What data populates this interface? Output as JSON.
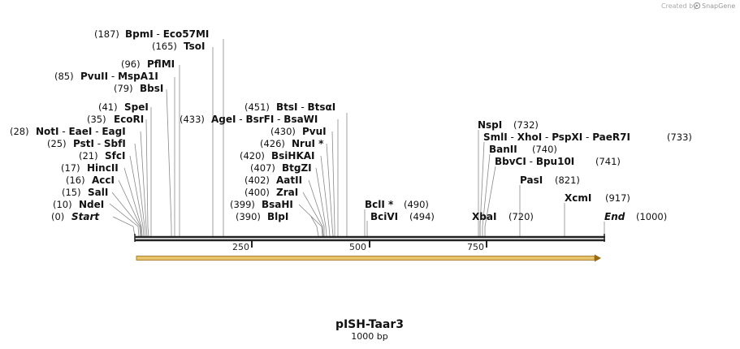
{
  "credit": {
    "prefix": "Created by",
    "brand": "SnapGene"
  },
  "map": {
    "name": "pISH-Taar3",
    "length_label": "1000 bp",
    "length": 1000,
    "ticks": [
      "250",
      "500",
      "750"
    ],
    "feature_color": "#e7c46b",
    "feature_edge": "#9a6a12"
  },
  "sites": [
    {
      "pos": "(0)",
      "name": "Start",
      "style": "end",
      "at": 0
    },
    {
      "pos": "(10)",
      "name": "NdeI",
      "at": 10
    },
    {
      "pos": "(15)",
      "name": "SalI",
      "at": 15
    },
    {
      "pos": "(16)",
      "name": "AccI",
      "at": 16
    },
    {
      "pos": "(17)",
      "name": "HincII",
      "at": 17
    },
    {
      "pos": "(21)",
      "name": "SfcI",
      "at": 21
    },
    {
      "pos": "(25)",
      "name": "PstI  -  SbfI",
      "at": 25
    },
    {
      "pos": "(28)",
      "name": "NotI  -  EaeI  -  EagI",
      "at": 28
    },
    {
      "pos": "(35)",
      "name": "EcoRI",
      "at": 35
    },
    {
      "pos": "(41)",
      "name": "SpeI",
      "at": 41
    },
    {
      "pos": "(79)",
      "name": "BbsI",
      "at": 79
    },
    {
      "pos": "(85)",
      "name": "PvuII   -  MspA1I",
      "at": 85
    },
    {
      "pos": "(96)",
      "name": "PflMI",
      "at": 96
    },
    {
      "pos": "(165)",
      "name": "TsoI",
      "at": 165
    },
    {
      "pos": "(187)",
      "name": "BpmI   -  Eco57MI",
      "at": 187
    },
    {
      "pos": "(433)",
      "name": "AgeI  -  BsrFI  -  BsaWI",
      "at": 433
    },
    {
      "pos": "(451)",
      "name": "BtsI  -  BtsαI",
      "at": 451
    },
    {
      "pos": "(430)",
      "name": "PvuI",
      "at": 430
    },
    {
      "pos": "(426)",
      "name": "NruI *",
      "at": 426
    },
    {
      "pos": "(420)",
      "name": "BsiHKAI",
      "at": 420
    },
    {
      "pos": "(407)",
      "name": "BtgZI",
      "at": 407
    },
    {
      "pos": "(402)",
      "name": "AatII",
      "at": 402
    },
    {
      "pos": "(400)",
      "name": "ZraI",
      "at": 400
    },
    {
      "pos": "(399)",
      "name": "BsaHI",
      "at": 399
    },
    {
      "pos": "(390)",
      "name": "BlpI",
      "at": 390
    },
    {
      "pos": "(490)",
      "name": "BclI *",
      "at": 490
    },
    {
      "pos": "(494)",
      "name": "BciVI",
      "at": 494
    },
    {
      "pos": "(720)",
      "name": "XbaI",
      "at": 720
    },
    {
      "pos": "(732)",
      "name": "NspI",
      "at": 732
    },
    {
      "pos": "(733)",
      "name": "SmlI  -  XhoI  -  PspXI  -  PaeR7I",
      "at": 733
    },
    {
      "pos": "(740)",
      "name": "BanII",
      "at": 740
    },
    {
      "pos": "(741)",
      "name": "BbvCI  -  Bpu10I",
      "at": 741
    },
    {
      "pos": "(821)",
      "name": "PasI",
      "at": 821
    },
    {
      "pos": "(917)",
      "name": "XcmI",
      "at": 917
    },
    {
      "pos": "(1000)",
      "name": "End",
      "style": "end",
      "at": 1000
    }
  ]
}
